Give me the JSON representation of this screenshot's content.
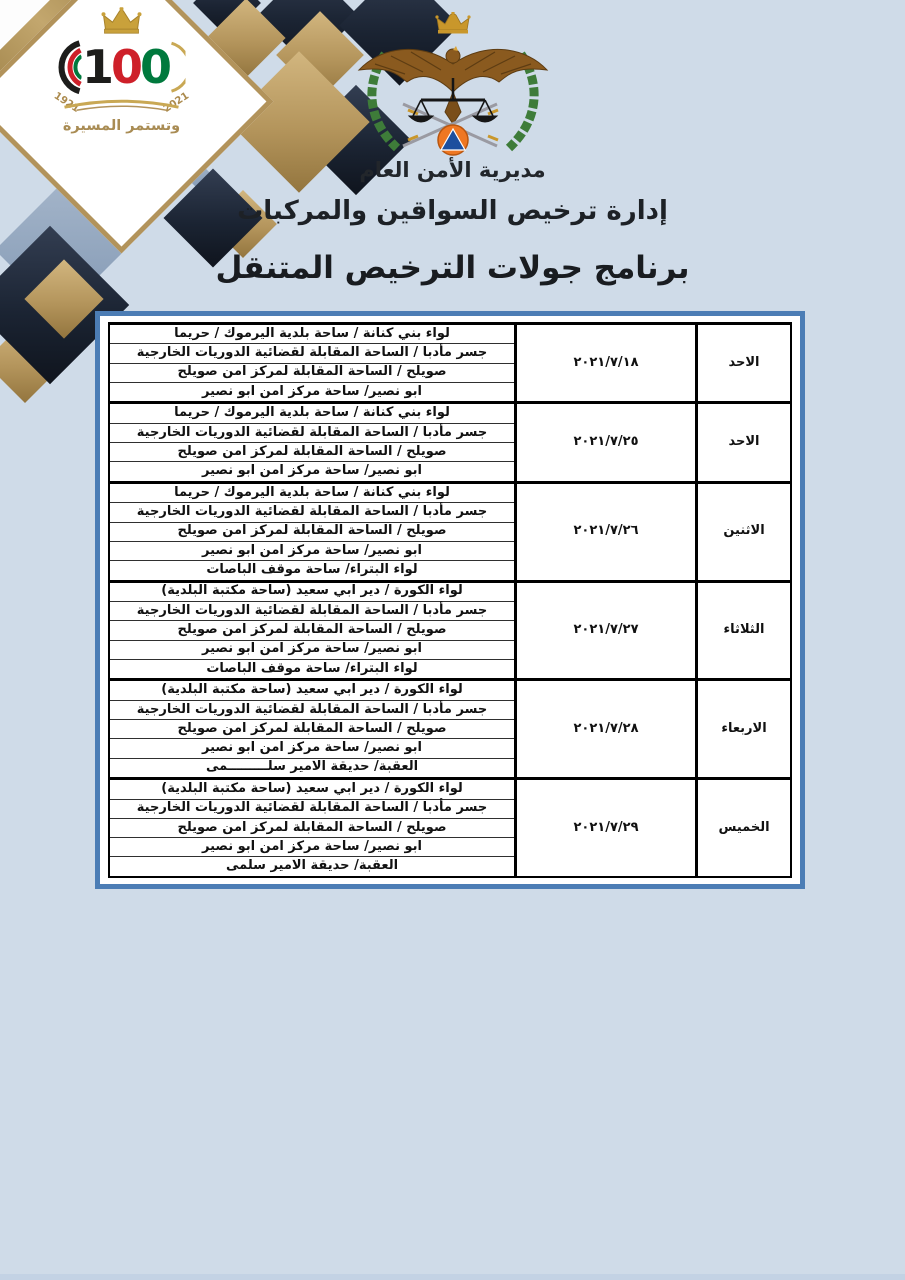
{
  "palette": {
    "background": "#cfdbe8",
    "table_border_blue": "#4c7db5",
    "navy": "#1b2433",
    "gold": "#b2935b",
    "flag_red": "#ce2029",
    "flag_green": "#00793d",
    "wreath_green": "#3e7c39",
    "civil_defense_orange": "#ef7722",
    "civil_defense_blue": "#1d4f9e"
  },
  "centennial_logo": {
    "number": "100",
    "year_left": "1921",
    "year_right": "2021",
    "slogan": "وتستمر المسيرة"
  },
  "header": {
    "directorate": "مديرية الأمن العام",
    "department": "إدارة ترخيص السواقين والمركبات",
    "title": "برنامج جولات الترخيص المتنقل"
  },
  "schedule": {
    "groups": [
      {
        "day": "الاحد",
        "date": "٢٠٢١/٧/١٨",
        "locations": [
          "لواء بني كنانة / ساحة بلدية اليرموك / حريما",
          "جسر مأدبا / الساحة المقابلة لقضائية الدوريات الخارجية",
          "صويلح / الساحة المقابلة لمركز امن صويلح",
          "ابو نصير/ ساحة مركز امن ابو نصير"
        ]
      },
      {
        "day": "الاحد",
        "date": "٢٠٢١/٧/٢٥",
        "locations": [
          "لواء بني كنانة / ساحة بلدية اليرموك / حريما",
          "جسر مأدبا / الساحة المقابلة لقضائية الدوريات الخارجية",
          "صويلح / الساحة المقابلة لمركز امن صويلح",
          "ابو نصير/ ساحة مركز امن ابو نصير"
        ]
      },
      {
        "day": "الاثنين",
        "date": "٢٠٢١/٧/٢٦",
        "locations": [
          "لواء بني كنانة / ساحة بلدية اليرموك / حريما",
          "جسر مأدبا / الساحة المقابلة لقضائية الدوريات الخارجية",
          "صويلح / الساحة المقابلة لمركز امن صويلح",
          "ابو نصير/ ساحة مركز امن ابو نصير",
          "لواء البتراء/ ساحة موقف الباصات"
        ]
      },
      {
        "day": "الثلاثاء",
        "date": "٢٠٢١/٧/٢٧",
        "locations": [
          "لواء الكورة / دير ابي سعيد (ساحة مكتبة البلدية)",
          "جسر مأدبا / الساحة المقابلة لقضائية الدوريات الخارجية",
          "صويلح / الساحة المقابلة لمركز امن صويلح",
          "ابو نصير/ ساحة مركز امن ابو نصير",
          "لواء البتراء/ ساحة موقف الباصات"
        ]
      },
      {
        "day": "الاربعاء",
        "date": "٢٠٢١/٧/٢٨",
        "locations": [
          "لواء الكورة / دير ابي سعيد (ساحة مكتبة البلدية)",
          "جسر مأدبا / الساحة المقابلة لقضائية الدوريات الخارجية",
          "صويلح / الساحة المقابلة لمركز امن صويلح",
          "ابو نصير/ ساحة مركز امن ابو نصير",
          "العقبة/ حديقة الامير سلـــــــــمى"
        ]
      },
      {
        "day": "الخميس",
        "date": "٢٠٢١/٧/٢٩",
        "locations": [
          "لواء الكورة / دير ابي سعيد (ساحة مكتبة البلدية)",
          "جسر مأدبا / الساحة المقابلة لقضائية الدوريات الخارجية",
          "صويلح / الساحة المقابلة لمركز امن صويلح",
          "ابو نصير/ ساحة مركز امن ابو نصير",
          "العقبة/ حديقة الامير سلمى"
        ]
      }
    ]
  }
}
